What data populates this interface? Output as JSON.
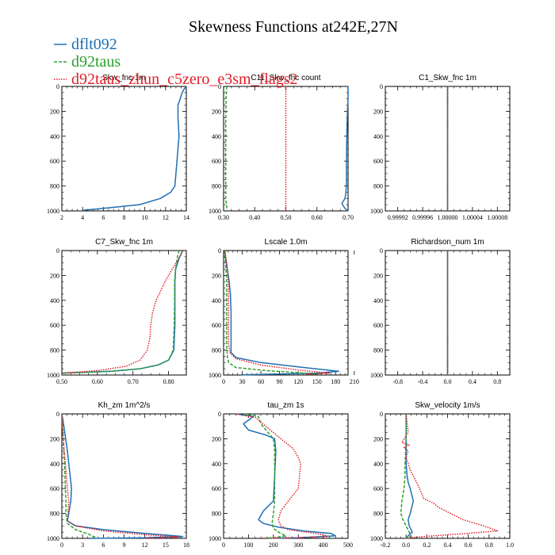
{
  "figure": {
    "title": "Skewness Functions at242E,27N",
    "legend": [
      {
        "name": "dflt092",
        "color": "#1f6fb4",
        "style": "solid"
      },
      {
        "name": "d92taus",
        "color": "#2ca02c",
        "style": "dashed"
      },
      {
        "name": "d92taus_zhun_c5zero_e3sm_flags2",
        "color": "#e0202a",
        "style": "dotted"
      }
    ]
  },
  "chart_data": [
    {
      "type": "line",
      "title": "Skw_fnc  1m",
      "xlim": [
        2,
        14
      ],
      "ylim": [
        0,
        1000
      ],
      "xticks": [
        "2",
        "4",
        "6",
        "8",
        "10",
        "12",
        "14"
      ],
      "yticks": [
        "0",
        "200",
        "400",
        "600",
        "800",
        "1000"
      ],
      "series": [
        {
          "x": [
            14,
            13.8,
            13.6,
            13.4,
            13.2,
            13.2,
            13.3,
            13.2,
            13.1,
            13.0,
            12.9,
            12.5,
            11.5,
            9.5,
            6.5,
            4.0
          ],
          "y": [
            0,
            20,
            50,
            100,
            150,
            250,
            400,
            500,
            600,
            700,
            800,
            850,
            900,
            950,
            975,
            995
          ]
        }
      ]
    },
    {
      "type": "line",
      "title": "C11_Skw_fnc  count",
      "xlim": [
        0.3,
        0.7
      ],
      "ylim": [
        0,
        1000
      ],
      "xticks": [
        "0.30",
        "0.40",
        "0.50",
        "0.60",
        "0.70"
      ],
      "yticks": [
        "0",
        "200",
        "400",
        "600",
        "800",
        "1000"
      ],
      "series": [
        {
          "x": [
            0.7,
            0.7,
            0.698,
            0.696,
            0.695,
            0.695,
            0.692,
            0.69,
            0.68,
            0.69,
            0.7
          ],
          "y": [
            0,
            100,
            200,
            400,
            600,
            800,
            870,
            900,
            940,
            980,
            1000
          ]
        },
        {
          "x": [
            0.31,
            0.308,
            0.307,
            0.307,
            0.307,
            0.307,
            0.31,
            0.31
          ],
          "y": [
            0,
            100,
            300,
            500,
            700,
            900,
            960,
            1000
          ]
        },
        {
          "x": [
            0.5,
            0.5
          ],
          "y": [
            0,
            1000
          ]
        }
      ]
    },
    {
      "type": "line",
      "title": "C1_Skw_fnc  1m",
      "xlim": [
        0.9999,
        1.0001
      ],
      "ylim": [
        0,
        1000
      ],
      "xticks": [
        "0.99992",
        "0.99996",
        "1.00000",
        "1.00004",
        "1.00008"
      ],
      "yticks": [
        "0",
        "200",
        "400",
        "600",
        "800",
        "1000"
      ],
      "series": [
        {
          "x": [
            1.0,
            1.0
          ],
          "y": [
            0,
            1000
          ]
        },
        {
          "x": [
            1.0,
            1.0
          ],
          "y": [
            0,
            1000
          ]
        },
        {
          "x": [
            1.0,
            1.0
          ],
          "y": [
            0,
            1000
          ]
        }
      ]
    },
    {
      "type": "line",
      "title": "C7_Skw_fnc  1m",
      "xlim": [
        0.5,
        0.85
      ],
      "ylim": [
        0,
        1000
      ],
      "xticks": [
        "0.50",
        "0.60",
        "0.70",
        "0.80"
      ],
      "yticks": [
        "0",
        "200",
        "400",
        "600",
        "800",
        "1000"
      ],
      "series": [
        {
          "x": [
            0.84,
            0.83,
            0.82,
            0.818,
            0.818,
            0.818,
            0.815,
            0.8,
            0.77,
            0.72,
            0.64,
            0.5
          ],
          "y": [
            0,
            60,
            150,
            250,
            400,
            600,
            800,
            880,
            920,
            950,
            970,
            985
          ]
        },
        {
          "x": [
            0.83,
            0.825,
            0.82,
            0.817,
            0.817,
            0.816,
            0.813,
            0.8,
            0.77,
            0.72,
            0.64,
            0.5
          ],
          "y": [
            0,
            50,
            150,
            250,
            400,
            600,
            800,
            880,
            920,
            950,
            970,
            985
          ]
        },
        {
          "x": [
            0.84,
            0.83,
            0.81,
            0.79,
            0.765,
            0.755,
            0.75,
            0.748,
            0.74,
            0.72,
            0.68,
            0.6,
            0.5
          ],
          "y": [
            0,
            60,
            150,
            250,
            400,
            500,
            600,
            700,
            800,
            880,
            930,
            965,
            985
          ]
        }
      ]
    },
    {
      "type": "line",
      "title": "Lscale  1.0m",
      "xlim": [
        0,
        200
      ],
      "ylim": [
        0,
        1000
      ],
      "xticks": [
        "0",
        "30",
        "60",
        "90",
        "120",
        "150",
        "180",
        "210"
      ],
      "yticks": [
        "0",
        "200",
        "400",
        "600",
        "800",
        "1000"
      ],
      "series": [
        {
          "x": [
            2,
            3,
            6,
            9,
            11,
            12,
            12,
            12,
            12,
            12,
            20,
            60,
            130,
            185,
            150,
            90,
            30
          ],
          "y": [
            0,
            50,
            150,
            250,
            350,
            500,
            600,
            700,
            780,
            820,
            860,
            900,
            940,
            970,
            985,
            992,
            998
          ]
        },
        {
          "x": [
            1,
            2,
            4,
            5,
            5,
            5,
            5,
            6,
            8,
            20,
            70,
            130,
            155
          ],
          "y": [
            0,
            50,
            150,
            250,
            400,
            600,
            750,
            850,
            900,
            940,
            965,
            985,
            995
          ]
        },
        {
          "x": [
            2,
            5,
            7,
            8,
            8,
            8,
            8,
            10,
            20,
            60,
            120,
            170,
            130
          ],
          "y": [
            0,
            100,
            200,
            300,
            400,
            600,
            750,
            820,
            870,
            920,
            960,
            985,
            995
          ]
        }
      ]
    },
    {
      "type": "line",
      "title": "Richardson_num  1m",
      "xlim": [
        -1,
        1
      ],
      "ylim": [
        0,
        1000
      ],
      "xticks": [
        "-0.8",
        "-0.4",
        "0.0",
        "0.4",
        "0.8"
      ],
      "yticks": [
        "0",
        "200",
        "400",
        "600",
        "800",
        "1000"
      ],
      "series": [
        {
          "x": [
            0,
            0
          ],
          "y": [
            0,
            1000
          ]
        },
        {
          "x": [
            0,
            0
          ],
          "y": [
            0,
            1000
          ]
        },
        {
          "x": [
            0,
            0
          ],
          "y": [
            0,
            1000
          ]
        }
      ]
    },
    {
      "type": "line",
      "title": "Kh_zm  1m^2/s",
      "xlim": [
        0,
        18
      ],
      "ylim": [
        0,
        1000
      ],
      "xticks": [
        "0",
        "3",
        "6",
        "9",
        "12",
        "15",
        "18"
      ],
      "yticks": [
        "0",
        "200",
        "400",
        "600",
        "800",
        "1000"
      ],
      "series": [
        {
          "x": [
            0,
            0.3,
            0.8,
            1.2,
            1.4,
            1.3,
            1.0,
            0.8,
            2,
            6,
            12,
            17.5,
            12,
            4
          ],
          "y": [
            0,
            100,
            300,
            500,
            600,
            700,
            800,
            860,
            900,
            930,
            960,
            985,
            995,
            1000
          ]
        },
        {
          "x": [
            0,
            0.2,
            0.4,
            0.5,
            0.6,
            0.6,
            0.8,
            2,
            4,
            5
          ],
          "y": [
            0,
            200,
            400,
            600,
            700,
            800,
            880,
            930,
            970,
            995
          ]
        },
        {
          "x": [
            0,
            0.2,
            0.5,
            0.8,
            1.0,
            0.9,
            0.8,
            2,
            6,
            12,
            17,
            12
          ],
          "y": [
            0,
            200,
            400,
            600,
            700,
            800,
            860,
            900,
            940,
            970,
            990,
            1000
          ]
        }
      ]
    },
    {
      "type": "line",
      "title": "tau_zm  1s",
      "xlim": [
        0,
        500
      ],
      "ylim": [
        0,
        1000
      ],
      "xticks": [
        "0",
        "100",
        "200",
        "300",
        "400",
        "500"
      ],
      "yticks": [
        "0",
        "200",
        "400",
        "600",
        "800",
        "1000"
      ],
      "series": [
        {
          "x": [
            50,
            120,
            80,
            100,
            170,
            205,
            210,
            205,
            200,
            160,
            140,
            160,
            220,
            320,
            430,
            450,
            300,
            150
          ],
          "y": [
            0,
            20,
            80,
            130,
            170,
            200,
            300,
            500,
            700,
            780,
            850,
            880,
            910,
            940,
            960,
            980,
            995,
            1000
          ]
        },
        {
          "x": [
            80,
            140,
            150,
            170,
            200,
            205,
            205,
            205,
            200,
            195,
            200,
            220,
            250,
            200,
            150
          ],
          "y": [
            0,
            20,
            80,
            130,
            200,
            300,
            500,
            700,
            800,
            880,
            920,
            950,
            980,
            995,
            1000
          ]
        },
        {
          "x": [
            50,
            130,
            170,
            230,
            280,
            300,
            310,
            300,
            260,
            230,
            220,
            230,
            260,
            330,
            400,
            420,
            300,
            150
          ],
          "y": [
            0,
            30,
            100,
            200,
            280,
            350,
            400,
            600,
            700,
            780,
            850,
            900,
            930,
            950,
            970,
            985,
            995,
            1000
          ]
        }
      ]
    },
    {
      "type": "line",
      "title": "Skw_velocity  1m/s",
      "xlim": [
        -0.2,
        1.0
      ],
      "ylim": [
        0,
        1000
      ],
      "xticks": [
        "-0.2",
        "0.0",
        "0.2",
        "0.4",
        "0.6",
        "0.8",
        "1.0"
      ],
      "yticks": [
        "0",
        "200",
        "400",
        "600",
        "800",
        "1000"
      ],
      "series": [
        {
          "x": [
            0,
            0,
            0,
            0.01,
            0.02,
            0.04,
            0.07,
            0.04,
            0.02,
            0.03,
            0.06,
            0.02,
            0
          ],
          "y": [
            0,
            200,
            400,
            500,
            550,
            600,
            700,
            800,
            850,
            900,
            950,
            980,
            1000
          ]
        },
        {
          "x": [
            0,
            0,
            -0.01,
            -0.01,
            -0.02,
            -0.04,
            -0.05,
            -0.03,
            0,
            0.03,
            0.05,
            0
          ],
          "y": [
            0,
            200,
            400,
            500,
            600,
            700,
            800,
            850,
            900,
            950,
            980,
            1000
          ]
        },
        {
          "x": [
            0,
            0.02,
            -0.04,
            0.03,
            -0.02,
            0.02,
            0,
            0.04,
            0.1,
            0.13,
            0.17,
            0.27,
            0.31,
            0.55,
            0.75,
            0.88,
            0.6,
            0.1,
            0
          ],
          "y": [
            0,
            150,
            230,
            250,
            270,
            300,
            350,
            450,
            550,
            600,
            680,
            720,
            750,
            850,
            900,
            940,
            960,
            990,
            1000
          ]
        }
      ]
    }
  ]
}
